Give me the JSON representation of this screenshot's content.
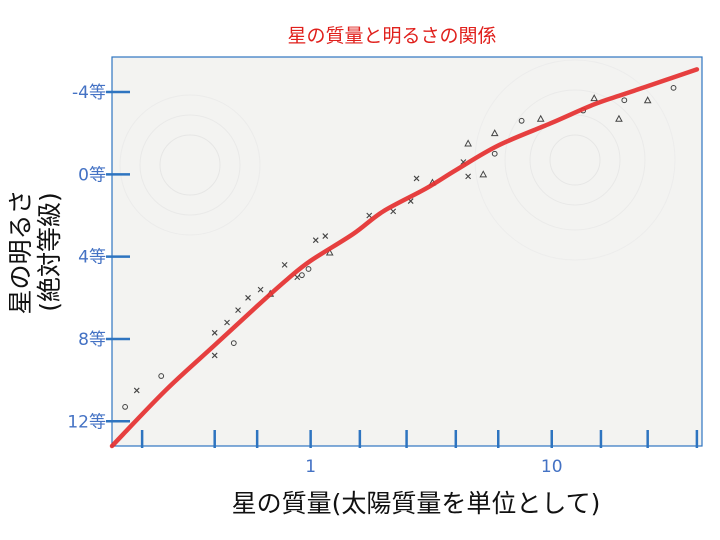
{
  "chart_data": {
    "type": "scatter",
    "title": "星の質量と明るさの関係",
    "xlabel": "星の質量(太陽質量を単位として)",
    "ylabel_lines": [
      "星の明るさ",
      "(絶対等級)"
    ],
    "x_scale": "log",
    "y_inverted": true,
    "xlim": [
      0.15,
      42
    ],
    "ylim": [
      13.2,
      -5.7
    ],
    "x_tick_labels": [
      {
        "value": 1,
        "label": "1"
      },
      {
        "value": 10,
        "label": "10"
      }
    ],
    "x_minor_ticks": [
      0.2,
      0.4,
      0.6,
      1,
      1.6,
      2.5,
      4,
      6,
      10,
      16,
      25,
      40
    ],
    "y_tick_labels": [
      {
        "value": -4,
        "label": "-4等"
      },
      {
        "value": 0,
        "label": "0等"
      },
      {
        "value": 4,
        "label": "4等"
      },
      {
        "value": 8,
        "label": "8等"
      },
      {
        "value": 12,
        "label": "12等"
      }
    ],
    "series": [
      {
        "marker": "x",
        "points": [
          [
            0.19,
            10.5
          ],
          [
            0.4,
            7.7
          ],
          [
            0.4,
            8.8
          ],
          [
            0.45,
            7.2
          ],
          [
            0.5,
            6.6
          ],
          [
            0.55,
            6.0
          ],
          [
            0.62,
            5.6
          ],
          [
            0.78,
            4.4
          ],
          [
            0.88,
            5.0
          ],
          [
            1.05,
            3.2
          ],
          [
            1.15,
            3.0
          ],
          [
            2.2,
            1.8
          ],
          [
            2.6,
            1.3
          ],
          [
            2.75,
            0.2
          ],
          [
            1.75,
            2.0
          ],
          [
            4.3,
            -0.6
          ],
          [
            4.5,
            0.1
          ]
        ]
      },
      {
        "marker": "o",
        "points": [
          [
            0.17,
            11.3
          ],
          [
            0.24,
            9.8
          ],
          [
            0.48,
            8.2
          ],
          [
            0.92,
            4.9
          ],
          [
            0.98,
            4.6
          ],
          [
            5.8,
            -1.0
          ],
          [
            7.5,
            -2.6
          ],
          [
            13.5,
            -3.1
          ],
          [
            20,
            -3.6
          ],
          [
            32,
            -4.2
          ]
        ]
      },
      {
        "marker": "triangle",
        "points": [
          [
            0.68,
            5.8
          ],
          [
            1.2,
            3.8
          ],
          [
            3.2,
            0.4
          ],
          [
            4.5,
            -1.5
          ],
          [
            5.2,
            0.0
          ],
          [
            5.8,
            -2.0
          ],
          [
            9.0,
            -2.7
          ],
          [
            15,
            -3.7
          ],
          [
            19,
            -2.7
          ],
          [
            25,
            -3.6
          ]
        ]
      }
    ],
    "fit_curve": [
      [
        0.15,
        13.2
      ],
      [
        0.25,
        10.5
      ],
      [
        0.4,
        8.3
      ],
      [
        0.6,
        6.4
      ],
      [
        0.8,
        5.1
      ],
      [
        1.0,
        4.2
      ],
      [
        1.5,
        2.9
      ],
      [
        2.0,
        1.8
      ],
      [
        3.0,
        0.7
      ],
      [
        4.0,
        -0.2
      ],
      [
        6.0,
        -1.4
      ],
      [
        10,
        -2.5
      ],
      [
        15,
        -3.4
      ],
      [
        20,
        -3.9
      ],
      [
        30,
        -4.6
      ],
      [
        40,
        -5.1
      ]
    ],
    "colors": {
      "title": "#e0201c",
      "fit_curve": "#e53030",
      "axis_blue": "#2e74c0",
      "tick_label": "#4472c4",
      "marker": "#444444"
    }
  }
}
